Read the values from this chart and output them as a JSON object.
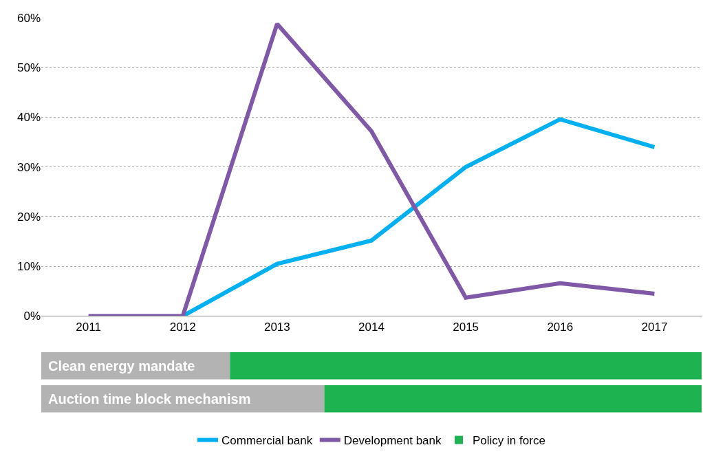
{
  "chart_data": [
    {
      "type": "line",
      "x": [
        2011,
        2012,
        2013,
        2014,
        2015,
        2016,
        2017
      ],
      "xlim": [
        2010.5,
        2017.5
      ],
      "xticks": [
        2011,
        2012,
        2013,
        2014,
        2015,
        2016,
        2017
      ],
      "ylim": [
        0,
        60
      ],
      "yticks": [
        {
          "value": 0,
          "label": "0%"
        },
        {
          "value": 10,
          "label": "10%"
        },
        {
          "value": 20,
          "label": "20%"
        },
        {
          "value": 30,
          "label": "30%"
        },
        {
          "value": 40,
          "label": "40%"
        },
        {
          "value": 50,
          "label": "50%"
        },
        {
          "value": 60,
          "label": "60%"
        }
      ],
      "grid": "y",
      "legend": "bottom",
      "marker": "none",
      "line_style": "solid",
      "series": [
        {
          "name": "Commercial bank",
          "color": "#00b0f0",
          "values": [
            null,
            0,
            10.5,
            15.2,
            30,
            39.6,
            34
          ]
        },
        {
          "name": "Development bank",
          "color": "#7f58a8",
          "values": [
            0,
            0,
            58.8,
            37.2,
            3.7,
            6.6,
            4.5
          ]
        }
      ]
    },
    {
      "type": "bar",
      "orientation": "horizontal",
      "categories": [
        "Clean energy mandate",
        "Auction time block mechanism"
      ],
      "xlim": [
        2010.5,
        2017.5
      ],
      "tick_labels": false,
      "legend": "bottom",
      "series": [
        {
          "color": "#b3b3b3",
          "base": [
            2010.5,
            2010.5
          ],
          "values": [
            2,
            3
          ]
        },
        {
          "name": "Policy in force",
          "color": "#1db350",
          "base": [
            2012.5,
            2013.5
          ],
          "values": [
            5,
            4
          ]
        }
      ]
    }
  ]
}
